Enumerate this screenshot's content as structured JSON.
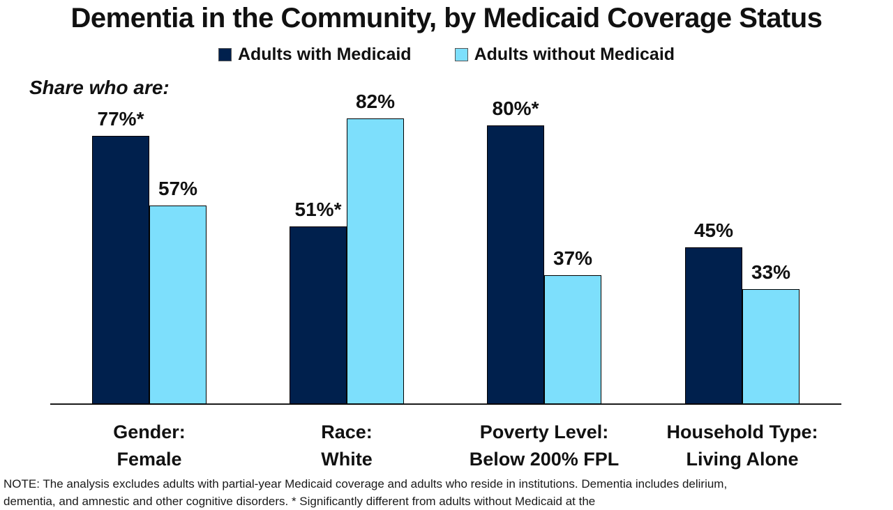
{
  "title": "Dementia in the Community, by Medicaid Coverage Status",
  "annotation": "Share who are:",
  "legend": [
    {
      "label": "Adults with Medicaid",
      "color": "#00204D"
    },
    {
      "label": "Adults without Medicaid",
      "color": "#7DDFFC"
    }
  ],
  "colors": {
    "with_medicaid": "#00204D",
    "without_medicaid": "#7DDFFC",
    "axis": "#1a1a1a"
  },
  "chart_data": {
    "type": "bar",
    "title": "Dementia in the Community, by Medicaid Coverage Status",
    "categories": [
      {
        "line1": "Gender:",
        "line2": "Female"
      },
      {
        "line1": "Race:",
        "line2": "White"
      },
      {
        "line1": "Poverty Level:",
        "line2": "Below 200% FPL"
      },
      {
        "line1": "Household Type:",
        "line2": "Living Alone"
      }
    ],
    "series": [
      {
        "name": "Adults with Medicaid",
        "color": "#00204D",
        "values": [
          77,
          51,
          80,
          45
        ],
        "labels": [
          "77%*",
          "51%*",
          "80%*",
          "45%"
        ]
      },
      {
        "name": "Adults without Medicaid",
        "color": "#7DDFFC",
        "values": [
          57,
          82,
          37,
          33
        ],
        "labels": [
          "57%",
          "82%",
          "37%",
          "33%"
        ]
      }
    ],
    "xlabel": "",
    "ylabel": "Share who are (%)",
    "ylim": [
      0,
      100
    ],
    "grid": false,
    "legend_position": "top",
    "unit": "%"
  },
  "note": "NOTE: The analysis excludes adults with partial-year Medicaid coverage and adults who reside in institutions. Dementia includes delirium, dementia, and amnestic and other cognitive disorders. * Significantly different from adults without Medicaid at the"
}
